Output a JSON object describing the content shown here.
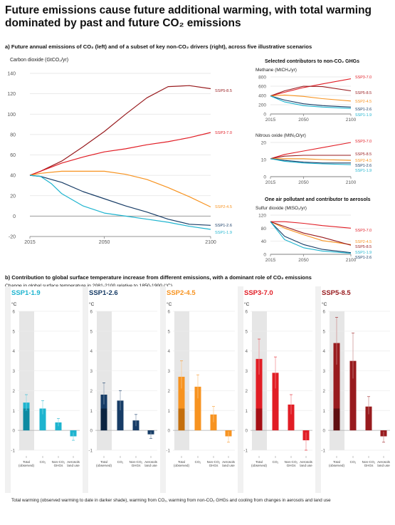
{
  "title": "Future emissions cause future additional warming, with total warming dominated by past and future CO₂ emissions",
  "section_a": "a) Future annual emissions of CO₂ (left) and of a subset of key non-CO₂ drivers (right), across five illustrative scenarios",
  "section_b": "b) Contribution to global surface temperature increase from different emissions, with a dominant role of CO₂ emissions",
  "section_b_sub": "Change in global surface temperature in 2081-2100 relative to 1850-1900 (°C)",
  "footnote": "Total warming (observed warming to date in darker shade), warming from CO₂, warming from non-CO₂ GHGs and cooling from changes in aerosols and land use",
  "colors": {
    "SSP1-1.9": "#1eb4cf",
    "SSP1-2.6": "#173c66",
    "SSP2-4.5": "#f79320",
    "SSP3-7.0": "#e11d25",
    "SSP5-8.5": "#981b1e"
  },
  "chart_data": [
    {
      "type": "line",
      "id": "co2",
      "ylabel": "Carbon dioxide (GtCO₂/yr)",
      "ylim": [
        -20,
        140
      ],
      "yticks": [
        -20,
        0,
        20,
        40,
        60,
        80,
        100,
        120,
        140
      ],
      "xlim": [
        2015,
        2100
      ],
      "xticks": [
        2015,
        2050,
        2100
      ],
      "series": [
        {
          "name": "SSP5-8.5",
          "x": [
            2015,
            2020,
            2030,
            2040,
            2050,
            2060,
            2070,
            2080,
            2090,
            2100
          ],
          "y": [
            40,
            44,
            54,
            68,
            83,
            100,
            116,
            127,
            128,
            125
          ]
        },
        {
          "name": "SSP3-7.0",
          "x": [
            2015,
            2020,
            2030,
            2040,
            2050,
            2060,
            2070,
            2080,
            2090,
            2100
          ],
          "y": [
            40,
            44,
            52,
            58,
            63,
            66,
            70,
            73,
            77,
            82
          ]
        },
        {
          "name": "SSP2-4.5",
          "x": [
            2015,
            2020,
            2030,
            2040,
            2050,
            2060,
            2070,
            2080,
            2090,
            2100
          ],
          "y": [
            40,
            42,
            44,
            44,
            44,
            41,
            36,
            28,
            19,
            9
          ]
        },
        {
          "name": "SSP1-2.6",
          "x": [
            2015,
            2020,
            2030,
            2040,
            2050,
            2060,
            2070,
            2080,
            2090,
            2100
          ],
          "y": [
            40,
            39,
            33,
            24,
            17,
            10,
            4,
            -3,
            -8,
            -9
          ]
        },
        {
          "name": "SSP1-1.9",
          "x": [
            2015,
            2020,
            2025,
            2030,
            2040,
            2050,
            2060,
            2070,
            2080,
            2090,
            2100
          ],
          "y": [
            40,
            39,
            32,
            22,
            10,
            3,
            0,
            -3,
            -6,
            -10,
            -13
          ]
        }
      ]
    },
    {
      "type": "line",
      "id": "ch4",
      "heading": "Selected contributors to non-CO₂ GHGs",
      "ylabel": "Methane (MtCH₄/yr)",
      "ylim": [
        0,
        800
      ],
      "yticks": [
        0,
        200,
        400,
        600,
        800
      ],
      "xlim": [
        2015,
        2100
      ],
      "xticks": [
        2015,
        2050,
        2100
      ],
      "series": [
        {
          "name": "SSP3-7.0",
          "x": [
            2015,
            2030,
            2050,
            2070,
            2100
          ],
          "y": [
            390,
            470,
            570,
            650,
            760
          ]
        },
        {
          "name": "SSP5-8.5",
          "x": [
            2015,
            2030,
            2050,
            2070,
            2100
          ],
          "y": [
            390,
            500,
            600,
            590,
            500
          ]
        },
        {
          "name": "SSP2-4.5",
          "x": [
            2015,
            2030,
            2050,
            2070,
            2100
          ],
          "y": [
            390,
            410,
            380,
            330,
            280
          ]
        },
        {
          "name": "SSP1-2.6",
          "x": [
            2015,
            2030,
            2050,
            2070,
            2100
          ],
          "y": [
            390,
            300,
            220,
            180,
            150
          ]
        },
        {
          "name": "SSP1-1.9",
          "x": [
            2015,
            2030,
            2050,
            2070,
            2100
          ],
          "y": [
            390,
            260,
            180,
            150,
            120
          ]
        }
      ]
    },
    {
      "type": "line",
      "id": "n2o",
      "ylabel": "Nitrous oxide (MtN₂O/yr)",
      "ylim": [
        0,
        20
      ],
      "yticks": [
        0,
        10,
        20
      ],
      "xlim": [
        2015,
        2100
      ],
      "xticks": [
        2015,
        2050,
        2100
      ],
      "series": [
        {
          "name": "SSP3-7.0",
          "x": [
            2015,
            2030,
            2050,
            2070,
            2100
          ],
          "y": [
            10.5,
            13,
            15,
            17,
            20
          ]
        },
        {
          "name": "SSP5-8.5",
          "x": [
            2015,
            2030,
            2050,
            2070,
            2100
          ],
          "y": [
            10.5,
            12,
            12.5,
            12.5,
            12.5
          ]
        },
        {
          "name": "SSP2-4.5",
          "x": [
            2015,
            2030,
            2050,
            2070,
            2100
          ],
          "y": [
            10.5,
            10.5,
            10.5,
            10,
            9.5
          ]
        },
        {
          "name": "SSP1-2.6",
          "x": [
            2015,
            2030,
            2050,
            2070,
            2100
          ],
          "y": [
            10.5,
            9.5,
            8.5,
            8,
            8
          ]
        },
        {
          "name": "SSP1-1.9",
          "x": [
            2015,
            2030,
            2050,
            2070,
            2100
          ],
          "y": [
            10.5,
            9,
            8,
            7.5,
            7
          ]
        }
      ]
    },
    {
      "type": "line",
      "id": "so2",
      "heading": "One air pollutant and contributor to aerosols",
      "ylabel": "Sulfur dioxide (MtSO₂/yr)",
      "ylim": [
        0,
        120
      ],
      "yticks": [
        0,
        40,
        80,
        120
      ],
      "xlim": [
        2015,
        2100
      ],
      "xticks": [
        2015,
        2050,
        2100
      ],
      "series": [
        {
          "name": "SSP3-7.0",
          "x": [
            2015,
            2030,
            2050,
            2070,
            2100
          ],
          "y": [
            100,
            100,
            95,
            88,
            80
          ]
        },
        {
          "name": "SSP2-4.5",
          "x": [
            2015,
            2030,
            2050,
            2070,
            2100
          ],
          "y": [
            100,
            80,
            60,
            42,
            30
          ]
        },
        {
          "name": "SSP5-8.5",
          "x": [
            2015,
            2030,
            2050,
            2070,
            2100
          ],
          "y": [
            100,
            85,
            65,
            52,
            28
          ]
        },
        {
          "name": "SSP1-2.6",
          "x": [
            2015,
            2030,
            2050,
            2070,
            2100
          ],
          "y": [
            100,
            55,
            30,
            15,
            5
          ]
        },
        {
          "name": "SSP1-1.9",
          "x": [
            2015,
            2030,
            2050,
            2070,
            2100
          ],
          "y": [
            100,
            45,
            20,
            10,
            3
          ]
        }
      ]
    },
    {
      "type": "bar",
      "id": "warming",
      "ylabel": "°C",
      "ylim": [
        -1,
        6
      ],
      "yticks": [
        -1,
        0,
        1,
        2,
        3,
        4,
        5,
        6
      ],
      "categories": [
        "Total (observed)",
        "CO₂",
        "Non-CO₂ GHGs",
        "Aerosols land use"
      ],
      "observed": 1.1,
      "series": [
        {
          "name": "SSP1-1.9",
          "values": [
            1.4,
            1.1,
            0.4,
            -0.3
          ],
          "err": [
            [
              1.0,
              1.8
            ],
            [
              0.8,
              1.5
            ],
            [
              0.2,
              0.6
            ],
            [
              -0.5,
              -0.1
            ]
          ]
        },
        {
          "name": "SSP1-2.6",
          "values": [
            1.8,
            1.5,
            0.5,
            -0.2
          ],
          "err": [
            [
              1.3,
              2.4
            ],
            [
              1.0,
              2.0
            ],
            [
              0.2,
              0.8
            ],
            [
              -0.4,
              -0.05
            ]
          ]
        },
        {
          "name": "SSP2-4.5",
          "values": [
            2.7,
            2.2,
            0.8,
            -0.3
          ],
          "err": [
            [
              2.1,
              3.5
            ],
            [
              1.6,
              2.8
            ],
            [
              0.4,
              1.2
            ],
            [
              -0.6,
              -0.05
            ]
          ]
        },
        {
          "name": "SSP3-7.0",
          "values": [
            3.6,
            2.9,
            1.3,
            -0.5
          ],
          "err": [
            [
              2.8,
              4.6
            ],
            [
              2.1,
              3.7
            ],
            [
              0.8,
              1.8
            ],
            [
              -1.0,
              -0.1
            ]
          ]
        },
        {
          "name": "SSP5-8.5",
          "values": [
            4.4,
            3.5,
            1.2,
            -0.3
          ],
          "err": [
            [
              3.3,
              5.7
            ],
            [
              2.6,
              4.9
            ],
            [
              0.8,
              1.7
            ],
            [
              -0.6,
              -0.05
            ]
          ]
        }
      ]
    }
  ]
}
